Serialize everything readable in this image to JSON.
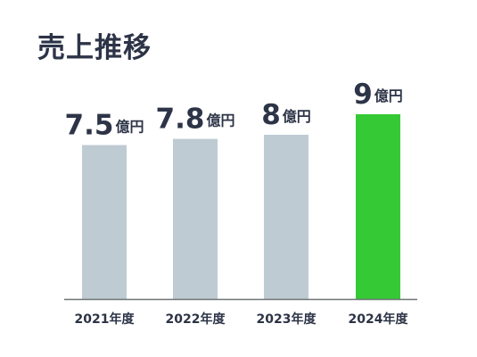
{
  "chart_data": {
    "type": "bar",
    "title": "売上推移",
    "categories": [
      "2021年度",
      "2022年度",
      "2023年度",
      "2024年度"
    ],
    "values": [
      7.5,
      7.8,
      8,
      9
    ],
    "value_labels": [
      "7.5",
      "7.8",
      "8",
      "9"
    ],
    "unit": "億円",
    "ylim": [
      0,
      10
    ],
    "grid": false,
    "legend": "none",
    "colors": {
      "default_bar": "#bfcbd3",
      "highlight_bar": "#35c935",
      "axis": "#6f7475",
      "text": "#2d3447"
    },
    "highlight_index": 3
  }
}
